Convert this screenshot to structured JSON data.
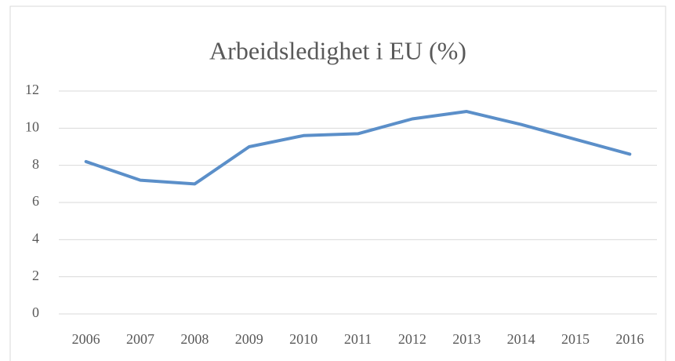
{
  "chart_data": {
    "type": "line",
    "title": "Arbeidsledighet i EU (%)",
    "categories": [
      "2006",
      "2007",
      "2008",
      "2009",
      "2010",
      "2011",
      "2012",
      "2013",
      "2014",
      "2015",
      "2016"
    ],
    "values": [
      8.2,
      7.2,
      7.0,
      9.0,
      9.6,
      9.7,
      10.5,
      10.9,
      10.2,
      9.4,
      8.6
    ],
    "color": "#5b8fc9",
    "ylim": [
      0,
      12
    ],
    "yticks": [
      0,
      2,
      4,
      6,
      8,
      10,
      12
    ],
    "grid": true
  }
}
